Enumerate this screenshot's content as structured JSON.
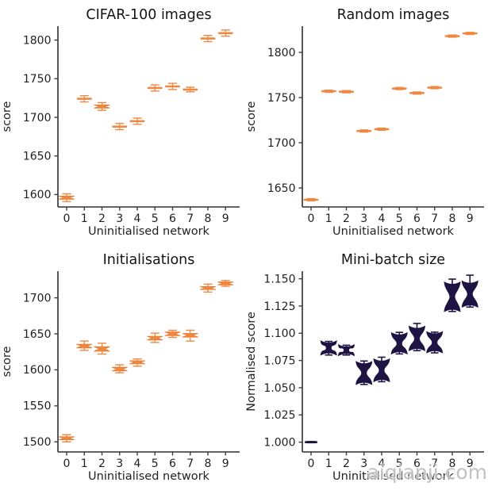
{
  "page": {
    "watermark": "aiqianji.com",
    "background": "#ffffff"
  },
  "colors": {
    "box_fill": "#ef8843",
    "box_edge": "#ed7d33",
    "violin_fill": "#1e1443",
    "axis": "#2e2e2e",
    "tick": "#3c3c3c",
    "text": "#1f1f1f",
    "title": "#141414",
    "watermark": "#bdbdbd"
  },
  "chart_data": [
    {
      "type": "box",
      "title": "CIFAR-100 images",
      "xlabel": "Uninitialised network",
      "ylabel": "score",
      "categories": [
        "0",
        "1",
        "2",
        "3",
        "4",
        "5",
        "6",
        "7",
        "8",
        "9"
      ],
      "ytick_values": [
        1600,
        1650,
        1700,
        1750,
        1800
      ],
      "ytick_labels": [
        "1600",
        "1650",
        "1700",
        "1750",
        "1800"
      ],
      "ylim": [
        1584,
        1818
      ],
      "grid": false,
      "legend": null,
      "points": [
        {
          "med": 1596,
          "q1": 1594,
          "q3": 1598,
          "lo": 1591,
          "hi": 1601
        },
        {
          "med": 1724,
          "q1": 1722.5,
          "q3": 1725.5,
          "lo": 1720,
          "hi": 1728
        },
        {
          "med": 1714,
          "q1": 1712,
          "q3": 1716,
          "lo": 1709,
          "hi": 1719
        },
        {
          "med": 1688,
          "q1": 1686.5,
          "q3": 1689.5,
          "lo": 1684,
          "hi": 1692
        },
        {
          "med": 1695,
          "q1": 1693.5,
          "q3": 1696.5,
          "lo": 1691,
          "hi": 1699
        },
        {
          "med": 1738,
          "q1": 1736.5,
          "q3": 1739.5,
          "lo": 1734,
          "hi": 1742
        },
        {
          "med": 1740,
          "q1": 1738.5,
          "q3": 1741.5,
          "lo": 1736,
          "hi": 1744
        },
        {
          "med": 1736,
          "q1": 1734.5,
          "q3": 1737.5,
          "lo": 1733,
          "hi": 1739
        },
        {
          "med": 1802,
          "q1": 1800.5,
          "q3": 1803.5,
          "lo": 1798,
          "hi": 1806
        },
        {
          "med": 1809,
          "q1": 1807.5,
          "q3": 1810.5,
          "lo": 1805,
          "hi": 1813
        }
      ]
    },
    {
      "type": "box",
      "title": "Random images",
      "xlabel": "Uninitialised network",
      "ylabel": "score",
      "categories": [
        "0",
        "1",
        "2",
        "3",
        "4",
        "5",
        "6",
        "7",
        "8",
        "9"
      ],
      "ytick_values": [
        1650,
        1700,
        1750,
        1800
      ],
      "ytick_labels": [
        "1650",
        "1700",
        "1750",
        "1800"
      ],
      "ylim": [
        1629,
        1829
      ],
      "grid": false,
      "legend": null,
      "points": [
        {
          "med": 1637,
          "q1": 1636.2,
          "q3": 1637.8,
          "lo": 1635.8,
          "hi": 1638.2
        },
        {
          "med": 1757,
          "q1": 1756.2,
          "q3": 1757.8,
          "lo": 1755.8,
          "hi": 1758.2
        },
        {
          "med": 1756.5,
          "q1": 1755.7,
          "q3": 1757.3,
          "lo": 1755.3,
          "hi": 1757.7
        },
        {
          "med": 1713,
          "q1": 1712.2,
          "q3": 1713.8,
          "lo": 1711.8,
          "hi": 1714.2
        },
        {
          "med": 1715,
          "q1": 1714.2,
          "q3": 1715.8,
          "lo": 1713.8,
          "hi": 1716.2
        },
        {
          "med": 1760,
          "q1": 1759.2,
          "q3": 1760.8,
          "lo": 1758.8,
          "hi": 1761.2
        },
        {
          "med": 1755,
          "q1": 1754.2,
          "q3": 1755.8,
          "lo": 1753.8,
          "hi": 1756.2
        },
        {
          "med": 1761,
          "q1": 1760.2,
          "q3": 1761.8,
          "lo": 1759.8,
          "hi": 1762.2
        },
        {
          "med": 1818,
          "q1": 1817.2,
          "q3": 1818.8,
          "lo": 1816.8,
          "hi": 1819.2
        },
        {
          "med": 1821,
          "q1": 1820.2,
          "q3": 1821.8,
          "lo": 1819.8,
          "hi": 1822.2
        }
      ]
    },
    {
      "type": "box",
      "title": "Initialisations",
      "xlabel": "Uninitialised network",
      "ylabel": "score",
      "categories": [
        "0",
        "1",
        "2",
        "3",
        "4",
        "5",
        "6",
        "7",
        "8",
        "9"
      ],
      "ytick_values": [
        1500,
        1550,
        1600,
        1650,
        1700
      ],
      "ytick_labels": [
        "1500",
        "1550",
        "1600",
        "1650",
        "1700"
      ],
      "ylim": [
        1486,
        1737
      ],
      "grid": false,
      "legend": null,
      "points": [
        {
          "med": 1505,
          "q1": 1503,
          "q3": 1507,
          "lo": 1500,
          "hi": 1510
        },
        {
          "med": 1633,
          "q1": 1630.5,
          "q3": 1635.5,
          "lo": 1627,
          "hi": 1640
        },
        {
          "med": 1629,
          "q1": 1626,
          "q3": 1632,
          "lo": 1622,
          "hi": 1637
        },
        {
          "med": 1601,
          "q1": 1598.5,
          "q3": 1603.5,
          "lo": 1596,
          "hi": 1607
        },
        {
          "med": 1610.5,
          "q1": 1608.5,
          "q3": 1612.5,
          "lo": 1605,
          "hi": 1615
        },
        {
          "med": 1644,
          "q1": 1641.5,
          "q3": 1646.5,
          "lo": 1638,
          "hi": 1651
        },
        {
          "med": 1650,
          "q1": 1647.5,
          "q3": 1652.5,
          "lo": 1645,
          "hi": 1655
        },
        {
          "med": 1648,
          "q1": 1645.5,
          "q3": 1650.5,
          "lo": 1640,
          "hi": 1655
        },
        {
          "med": 1713.5,
          "q1": 1711.5,
          "q3": 1715.5,
          "lo": 1708,
          "hi": 1719
        },
        {
          "med": 1720,
          "q1": 1718,
          "q3": 1722,
          "lo": 1716,
          "hi": 1724
        }
      ]
    },
    {
      "type": "violin",
      "title": "Mini-batch size",
      "xlabel": "Uninitialised network",
      "ylabel": "Normalised score",
      "categories": [
        "0",
        "1",
        "2",
        "3",
        "4",
        "5",
        "6",
        "7",
        "8",
        "9"
      ],
      "ytick_values": [
        1.0,
        1.025,
        1.05,
        1.075,
        1.1,
        1.125,
        1.15
      ],
      "ytick_labels": [
        "1.000",
        "1.025",
        "1.050",
        "1.075",
        "1.100",
        "1.125",
        "1.150"
      ],
      "ylim": [
        0.991,
        1.157
      ],
      "grid": false,
      "legend": null,
      "points": [
        {
          "med": 1.0,
          "lo": 0.9995,
          "hi": 1.0005,
          "wlo": 0.9995,
          "whi": 1.0005
        },
        {
          "med": 1.0865,
          "lo": 1.082,
          "hi": 1.091,
          "wlo": 1.08,
          "whi": 1.0925
        },
        {
          "med": 1.0845,
          "lo": 1.0815,
          "hi": 1.0875,
          "wlo": 1.08,
          "whi": 1.089
        },
        {
          "med": 1.0635,
          "lo": 1.055,
          "hi": 1.072,
          "wlo": 1.053,
          "whi": 1.0745
        },
        {
          "med": 1.066,
          "lo": 1.0575,
          "hi": 1.0745,
          "wlo": 1.0555,
          "whi": 1.078
        },
        {
          "med": 1.0905,
          "lo": 1.083,
          "hi": 1.0985,
          "wlo": 1.081,
          "whi": 1.1008
        },
        {
          "med": 1.095,
          "lo": 1.086,
          "hi": 1.1045,
          "wlo": 1.084,
          "whi": 1.109
        },
        {
          "med": 1.0915,
          "lo": 1.084,
          "hi": 1.0995,
          "wlo": 1.082,
          "whi": 1.101
        },
        {
          "med": 1.1335,
          "lo": 1.122,
          "hi": 1.145,
          "wlo": 1.12,
          "whi": 1.1497
        },
        {
          "med": 1.136,
          "lo": 1.126,
          "hi": 1.146,
          "wlo": 1.124,
          "whi": 1.1533
        }
      ]
    }
  ]
}
